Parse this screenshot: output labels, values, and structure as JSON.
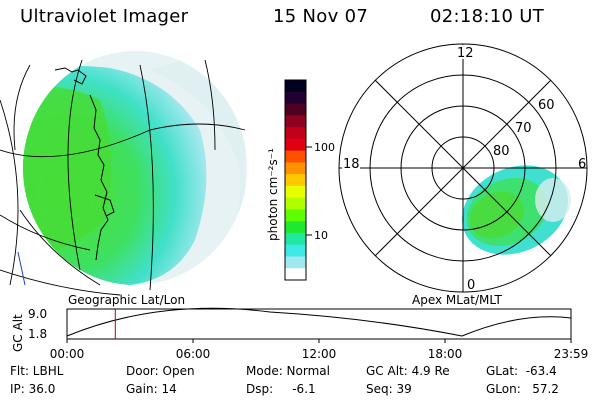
{
  "header": {
    "instrument": "Ultraviolet Imager",
    "date": "15 Nov 07",
    "time": "02:18:10 UT"
  },
  "left_panel": {
    "caption": "Geographic Lat/Lon"
  },
  "right_panel": {
    "caption": "Apex MLat/MLT",
    "mlt_labels": [
      "12",
      "18",
      "6",
      "0"
    ],
    "lat_labels": [
      "60",
      "70",
      "80"
    ]
  },
  "colorbar": {
    "unit_label": "photon cm⁻²s⁻¹",
    "ticks": [
      "100",
      "10"
    ],
    "colors": [
      "#000020",
      "#200030",
      "#500020",
      "#900020",
      "#c00018",
      "#e00010",
      "#ff5000",
      "#ff9000",
      "#ffc800",
      "#e8ff00",
      "#b0ff00",
      "#60ff00",
      "#20e830",
      "#20e8a0",
      "#40e8e8",
      "#a0e8f0",
      "#ffffff"
    ]
  },
  "altitude_plot": {
    "ylabel": "GC Alt",
    "ymax": "9.0",
    "ymin": "1.8",
    "time_ticks": [
      "00:00",
      "06:00",
      "12:00",
      "18:00",
      "23:59"
    ],
    "current_marker_hour": 2.3
  },
  "status": {
    "filter": "Flt: LBHL",
    "ip": "IP: 36.0",
    "door": "Door: Open",
    "gain": "Gain: 14",
    "mode": "Mode: Normal",
    "dsp": "Dsp:     -6.1",
    "gc_alt": "GC Alt: 4.9 Re",
    "seq": "Seq: 39",
    "glat": "GLat:  -63.4",
    "glon": "GLon:   57.2"
  }
}
